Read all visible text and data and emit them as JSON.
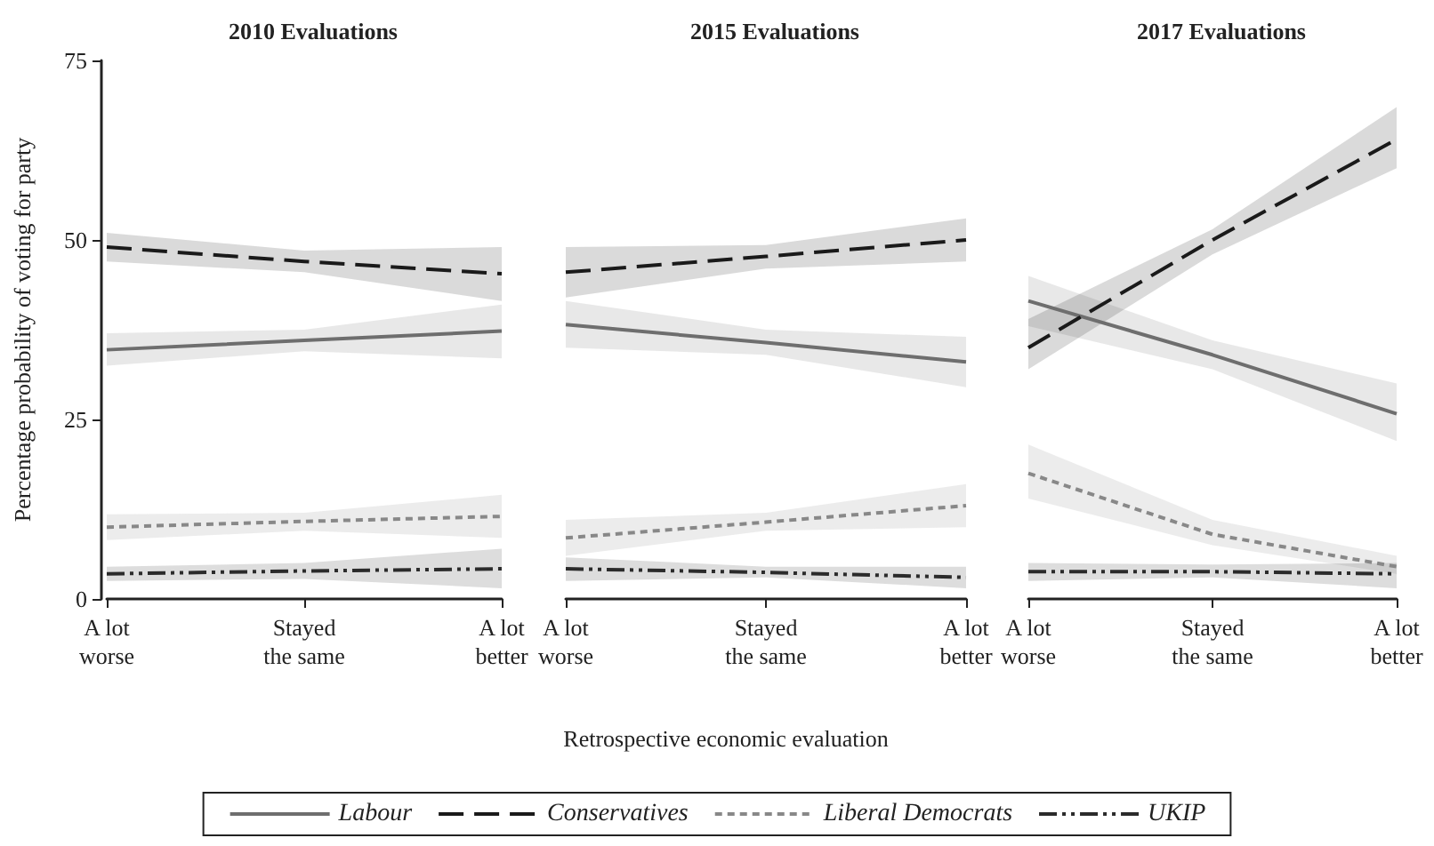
{
  "chart_data": [
    {
      "type": "line",
      "title": "2010 Evaluations",
      "ylabel": "Percentage probability of voting for party",
      "categories": [
        "A lot\nworse",
        "Stayed\nthe same",
        "A lot\nbetter"
      ],
      "ylim": [
        0,
        75
      ],
      "yticks": [
        0,
        25,
        50,
        75
      ],
      "marker": "none",
      "grid": false,
      "series": [
        {
          "color": "#6e6e6e",
          "line_style": "solid",
          "values": [
            34.7,
            36,
            37.3
          ],
          "lower": [
            32.5,
            34.5,
            33.5
          ],
          "upper": [
            37,
            37.5,
            41
          ]
        },
        {
          "color": "#1a1a1a",
          "line_style": "dashed",
          "values": [
            49,
            47,
            45.3
          ],
          "lower": [
            47,
            45.5,
            41.5
          ],
          "upper": [
            51,
            48.5,
            49
          ]
        },
        {
          "color": "#888888",
          "line_style": "dotted",
          "values": [
            10,
            10.8,
            11.5
          ],
          "lower": [
            8.2,
            9.5,
            8.5
          ],
          "upper": [
            11.8,
            12,
            14.5
          ]
        },
        {
          "color": "#2b2b2b",
          "line_style": "dashdot",
          "values": [
            3.5,
            3.9,
            4.2
          ],
          "lower": [
            2.5,
            2.8,
            1.5
          ],
          "upper": [
            4.5,
            5,
            7
          ]
        }
      ]
    },
    {
      "type": "line",
      "title": "2015 Evaluations",
      "xlabel": "Retrospective economic evaluation",
      "categories": [
        "A lot\nworse",
        "Stayed\nthe same",
        "A lot\nbetter"
      ],
      "ylim": [
        0,
        75
      ],
      "yticks": [
        0,
        25,
        50,
        75
      ],
      "tick_labels": "x",
      "marker": "none",
      "grid": false,
      "legend": "bottom",
      "series": [
        {
          "name": "Labour",
          "color": "#6e6e6e",
          "line_style": "solid",
          "values": [
            38.2,
            35.7,
            33
          ],
          "lower": [
            35,
            34,
            29.5
          ],
          "upper": [
            41.5,
            37.5,
            36.5
          ]
        },
        {
          "name": "Conservatives",
          "color": "#1a1a1a",
          "line_style": "dashed",
          "values": [
            45.5,
            47.7,
            50
          ],
          "lower": [
            42,
            46,
            47
          ],
          "upper": [
            49,
            49.3,
            53
          ]
        },
        {
          "name": "Liberal Democrats",
          "color": "#888888",
          "line_style": "dotted",
          "values": [
            8.5,
            10.7,
            13
          ],
          "lower": [
            6,
            9.5,
            10
          ],
          "upper": [
            11,
            12,
            16
          ]
        },
        {
          "name": "UKIP",
          "color": "#2b2b2b",
          "line_style": "dashdot",
          "values": [
            4.2,
            3.7,
            3
          ],
          "lower": [
            2.5,
            3,
            1.5
          ],
          "upper": [
            5.8,
            4.5,
            4.5
          ]
        }
      ]
    },
    {
      "type": "line",
      "title": "2017 Evaluations",
      "categories": [
        "A lot\nworse",
        "Stayed\nthe same",
        "A lot\nbetter"
      ],
      "ylim": [
        0,
        75
      ],
      "yticks": [
        0,
        25,
        50,
        75
      ],
      "tick_labels": "x",
      "marker": "none",
      "grid": false,
      "series": [
        {
          "color": "#6e6e6e",
          "line_style": "solid",
          "values": [
            41.5,
            34,
            25.8
          ],
          "lower": [
            38,
            32,
            22
          ],
          "upper": [
            45,
            36,
            30
          ]
        },
        {
          "color": "#1a1a1a",
          "line_style": "dashed",
          "values": [
            35,
            50,
            64
          ],
          "lower": [
            32,
            48,
            60
          ],
          "upper": [
            39,
            51.5,
            68.5
          ]
        },
        {
          "color": "#888888",
          "line_style": "dotted",
          "values": [
            17.5,
            9,
            4.5
          ],
          "lower": [
            14,
            7.5,
            3.5
          ],
          "upper": [
            21.5,
            11,
            6
          ]
        },
        {
          "color": "#2b2b2b",
          "line_style": "dashdot",
          "values": [
            3.8,
            3.8,
            3.5
          ],
          "lower": [
            2.5,
            3,
            1.5
          ],
          "upper": [
            5,
            4.8,
            5
          ]
        }
      ]
    }
  ]
}
